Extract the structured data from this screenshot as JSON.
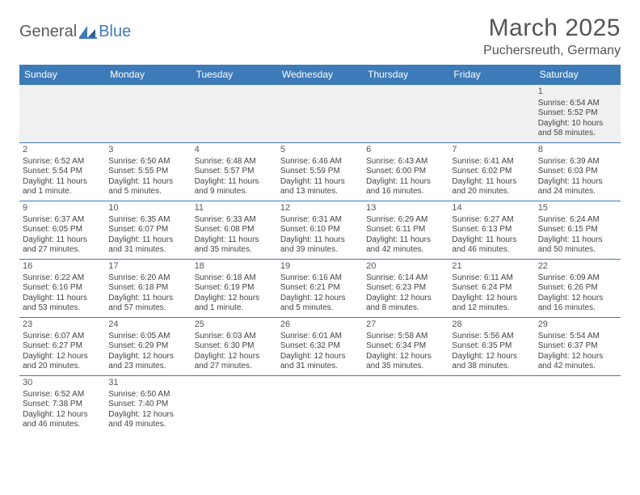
{
  "logo": {
    "part1": "General",
    "part2": "Blue"
  },
  "title": "March 2025",
  "location": "Puchersreuth, Germany",
  "colors": {
    "header_bg": "#3d7bb8",
    "header_text": "#ffffff",
    "rule": "#3d7bb8",
    "body_text": "#444444"
  },
  "weekdays": [
    "Sunday",
    "Monday",
    "Tuesday",
    "Wednesday",
    "Thursday",
    "Friday",
    "Saturday"
  ],
  "weeks": [
    [
      null,
      null,
      null,
      null,
      null,
      null,
      {
        "n": "1",
        "sr": "Sunrise: 6:54 AM",
        "ss": "Sunset: 5:52 PM",
        "dl": "Daylight: 10 hours and 58 minutes."
      }
    ],
    [
      {
        "n": "2",
        "sr": "Sunrise: 6:52 AM",
        "ss": "Sunset: 5:54 PM",
        "dl": "Daylight: 11 hours and 1 minute."
      },
      {
        "n": "3",
        "sr": "Sunrise: 6:50 AM",
        "ss": "Sunset: 5:55 PM",
        "dl": "Daylight: 11 hours and 5 minutes."
      },
      {
        "n": "4",
        "sr": "Sunrise: 6:48 AM",
        "ss": "Sunset: 5:57 PM",
        "dl": "Daylight: 11 hours and 9 minutes."
      },
      {
        "n": "5",
        "sr": "Sunrise: 6:46 AM",
        "ss": "Sunset: 5:59 PM",
        "dl": "Daylight: 11 hours and 13 minutes."
      },
      {
        "n": "6",
        "sr": "Sunrise: 6:43 AM",
        "ss": "Sunset: 6:00 PM",
        "dl": "Daylight: 11 hours and 16 minutes."
      },
      {
        "n": "7",
        "sr": "Sunrise: 6:41 AM",
        "ss": "Sunset: 6:02 PM",
        "dl": "Daylight: 11 hours and 20 minutes."
      },
      {
        "n": "8",
        "sr": "Sunrise: 6:39 AM",
        "ss": "Sunset: 6:03 PM",
        "dl": "Daylight: 11 hours and 24 minutes."
      }
    ],
    [
      {
        "n": "9",
        "sr": "Sunrise: 6:37 AM",
        "ss": "Sunset: 6:05 PM",
        "dl": "Daylight: 11 hours and 27 minutes."
      },
      {
        "n": "10",
        "sr": "Sunrise: 6:35 AM",
        "ss": "Sunset: 6:07 PM",
        "dl": "Daylight: 11 hours and 31 minutes."
      },
      {
        "n": "11",
        "sr": "Sunrise: 6:33 AM",
        "ss": "Sunset: 6:08 PM",
        "dl": "Daylight: 11 hours and 35 minutes."
      },
      {
        "n": "12",
        "sr": "Sunrise: 6:31 AM",
        "ss": "Sunset: 6:10 PM",
        "dl": "Daylight: 11 hours and 39 minutes."
      },
      {
        "n": "13",
        "sr": "Sunrise: 6:29 AM",
        "ss": "Sunset: 6:11 PM",
        "dl": "Daylight: 11 hours and 42 minutes."
      },
      {
        "n": "14",
        "sr": "Sunrise: 6:27 AM",
        "ss": "Sunset: 6:13 PM",
        "dl": "Daylight: 11 hours and 46 minutes."
      },
      {
        "n": "15",
        "sr": "Sunrise: 6:24 AM",
        "ss": "Sunset: 6:15 PM",
        "dl": "Daylight: 11 hours and 50 minutes."
      }
    ],
    [
      {
        "n": "16",
        "sr": "Sunrise: 6:22 AM",
        "ss": "Sunset: 6:16 PM",
        "dl": "Daylight: 11 hours and 53 minutes."
      },
      {
        "n": "17",
        "sr": "Sunrise: 6:20 AM",
        "ss": "Sunset: 6:18 PM",
        "dl": "Daylight: 11 hours and 57 minutes."
      },
      {
        "n": "18",
        "sr": "Sunrise: 6:18 AM",
        "ss": "Sunset: 6:19 PM",
        "dl": "Daylight: 12 hours and 1 minute."
      },
      {
        "n": "19",
        "sr": "Sunrise: 6:16 AM",
        "ss": "Sunset: 6:21 PM",
        "dl": "Daylight: 12 hours and 5 minutes."
      },
      {
        "n": "20",
        "sr": "Sunrise: 6:14 AM",
        "ss": "Sunset: 6:23 PM",
        "dl": "Daylight: 12 hours and 8 minutes."
      },
      {
        "n": "21",
        "sr": "Sunrise: 6:11 AM",
        "ss": "Sunset: 6:24 PM",
        "dl": "Daylight: 12 hours and 12 minutes."
      },
      {
        "n": "22",
        "sr": "Sunrise: 6:09 AM",
        "ss": "Sunset: 6:26 PM",
        "dl": "Daylight: 12 hours and 16 minutes."
      }
    ],
    [
      {
        "n": "23",
        "sr": "Sunrise: 6:07 AM",
        "ss": "Sunset: 6:27 PM",
        "dl": "Daylight: 12 hours and 20 minutes."
      },
      {
        "n": "24",
        "sr": "Sunrise: 6:05 AM",
        "ss": "Sunset: 6:29 PM",
        "dl": "Daylight: 12 hours and 23 minutes."
      },
      {
        "n": "25",
        "sr": "Sunrise: 6:03 AM",
        "ss": "Sunset: 6:30 PM",
        "dl": "Daylight: 12 hours and 27 minutes."
      },
      {
        "n": "26",
        "sr": "Sunrise: 6:01 AM",
        "ss": "Sunset: 6:32 PM",
        "dl": "Daylight: 12 hours and 31 minutes."
      },
      {
        "n": "27",
        "sr": "Sunrise: 5:58 AM",
        "ss": "Sunset: 6:34 PM",
        "dl": "Daylight: 12 hours and 35 minutes."
      },
      {
        "n": "28",
        "sr": "Sunrise: 5:56 AM",
        "ss": "Sunset: 6:35 PM",
        "dl": "Daylight: 12 hours and 38 minutes."
      },
      {
        "n": "29",
        "sr": "Sunrise: 5:54 AM",
        "ss": "Sunset: 6:37 PM",
        "dl": "Daylight: 12 hours and 42 minutes."
      }
    ],
    [
      {
        "n": "30",
        "sr": "Sunrise: 6:52 AM",
        "ss": "Sunset: 7:38 PM",
        "dl": "Daylight: 12 hours and 46 minutes."
      },
      {
        "n": "31",
        "sr": "Sunrise: 6:50 AM",
        "ss": "Sunset: 7:40 PM",
        "dl": "Daylight: 12 hours and 49 minutes."
      },
      null,
      null,
      null,
      null,
      null
    ]
  ]
}
